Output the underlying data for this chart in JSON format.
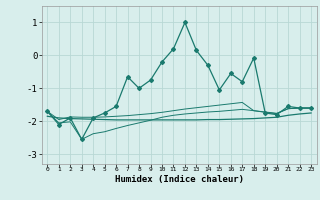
{
  "xlabel": "Humidex (Indice chaleur)",
  "xlim": [
    -0.5,
    23.5
  ],
  "ylim": [
    -3.3,
    1.5
  ],
  "bg_color": "#d8eeec",
  "grid_color": "#b8d8d5",
  "line_color": "#1a7a6e",
  "x": [
    0,
    1,
    2,
    3,
    4,
    5,
    6,
    7,
    8,
    9,
    10,
    11,
    12,
    13,
    14,
    15,
    16,
    17,
    18,
    19,
    20,
    21,
    22,
    23
  ],
  "main_y": [
    -1.7,
    -2.1,
    -1.9,
    -2.55,
    -1.9,
    -1.75,
    -1.55,
    -0.65,
    -1.0,
    -0.75,
    -0.2,
    0.2,
    1.0,
    0.15,
    -0.3,
    -1.05,
    -0.55,
    -0.8,
    -0.08,
    -1.75,
    -1.8,
    -1.55,
    -1.6,
    -1.6
  ],
  "upper_y": [
    -1.7,
    -1.95,
    -1.87,
    -1.88,
    -1.88,
    -1.87,
    -1.85,
    -1.83,
    -1.8,
    -1.77,
    -1.73,
    -1.68,
    -1.63,
    -1.59,
    -1.55,
    -1.51,
    -1.47,
    -1.43,
    -1.68,
    -1.72,
    -1.76,
    -1.62,
    -1.6,
    -1.6
  ],
  "lower_y": [
    -1.7,
    -2.05,
    -2.02,
    -2.55,
    -2.38,
    -2.32,
    -2.22,
    -2.13,
    -2.05,
    -1.97,
    -1.88,
    -1.82,
    -1.78,
    -1.75,
    -1.72,
    -1.7,
    -1.67,
    -1.64,
    -1.68,
    -1.73,
    -1.77,
    -1.62,
    -1.6,
    -1.6
  ],
  "flat_y": [
    -1.85,
    -1.9,
    -1.92,
    -1.93,
    -1.94,
    -1.95,
    -1.96,
    -1.96,
    -1.96,
    -1.96,
    -1.96,
    -1.96,
    -1.96,
    -1.96,
    -1.95,
    -1.95,
    -1.94,
    -1.93,
    -1.92,
    -1.9,
    -1.88,
    -1.82,
    -1.78,
    -1.75
  ],
  "yticks": [
    -3,
    -2,
    -1,
    0,
    1
  ],
  "xticks": [
    0,
    1,
    2,
    3,
    4,
    5,
    6,
    7,
    8,
    9,
    10,
    11,
    12,
    13,
    14,
    15,
    16,
    17,
    18,
    19,
    20,
    21,
    22,
    23
  ]
}
